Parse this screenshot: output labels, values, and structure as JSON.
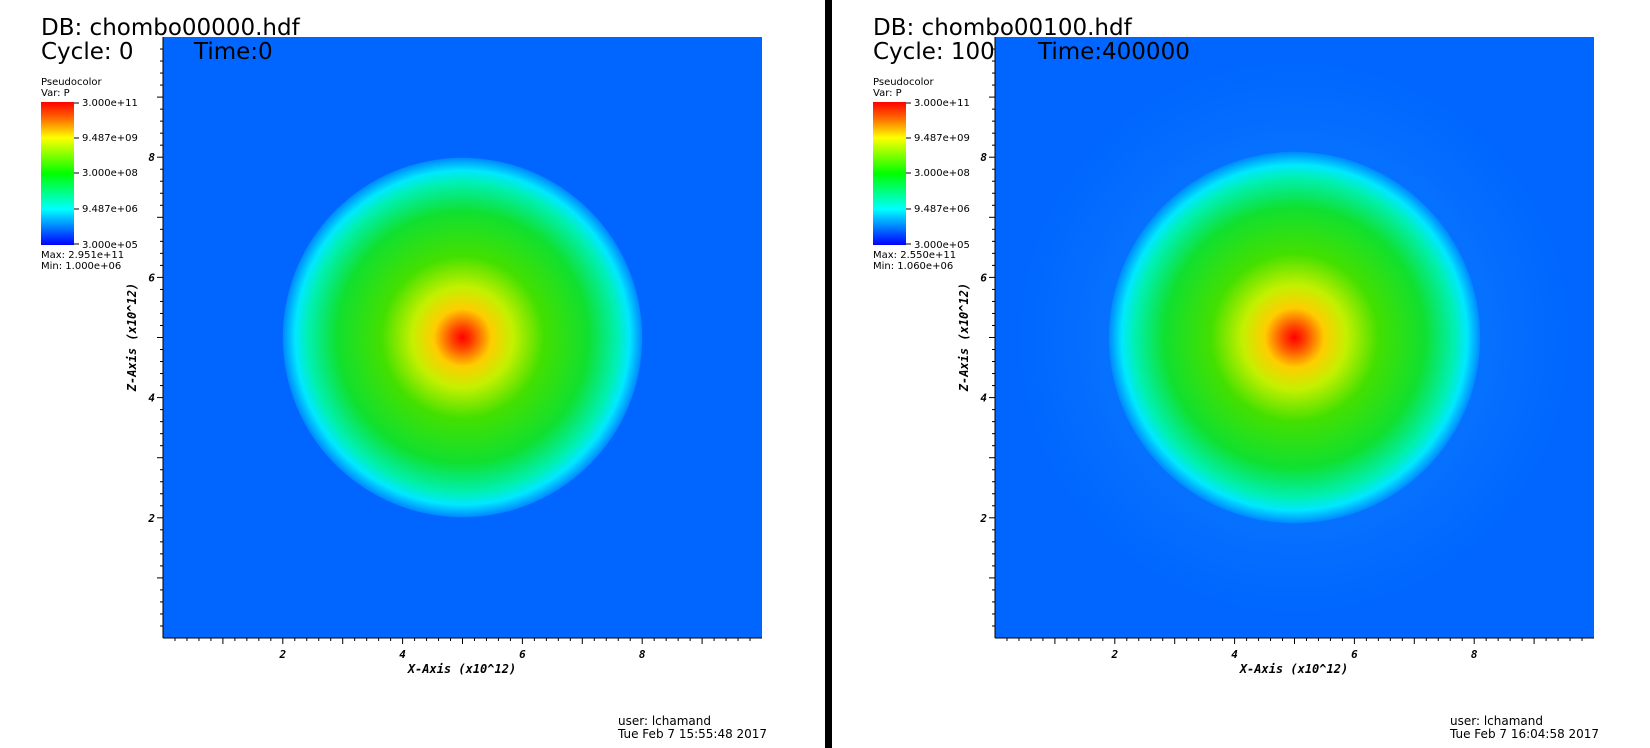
{
  "chart_data": [
    {
      "type": "heatmap",
      "db_label": "DB: chombo00000.hdf",
      "cycle_label": "Cycle: 0",
      "time_label": "Time:0",
      "legend": {
        "title": "Pseudocolor",
        "var": "Var: P",
        "scale": "log",
        "ticks": [
          "3.000e+11",
          "9.487e+09",
          "3.000e+08",
          "9.487e+06",
          "3.000e+05"
        ],
        "max_label": "Max:  2.951e+11",
        "min_label": "Min:  1.000e+06"
      },
      "xlabel": "X-Axis (x10^12)",
      "ylabel": "Z-Axis (x10^12)",
      "xlim": [
        0,
        10
      ],
      "ylim": [
        0,
        10
      ],
      "x_ticks": [
        "2",
        "4",
        "6",
        "8"
      ],
      "y_ticks": [
        "2",
        "4",
        "6",
        "8"
      ],
      "grid": false,
      "field": {
        "center": [
          5,
          5
        ],
        "radius": 3,
        "peak_value": 295100000000.0,
        "min_value": 1000000.0
      },
      "footer": {
        "user": "user: lchamand",
        "date": "Tue Feb  7 15:55:48 2017"
      }
    },
    {
      "type": "heatmap",
      "db_label": "DB: chombo00100.hdf",
      "cycle_label": "Cycle: 100",
      "time_label": "Time:400000",
      "legend": {
        "title": "Pseudocolor",
        "var": "Var: P",
        "scale": "log",
        "ticks": [
          "3.000e+11",
          "9.487e+09",
          "3.000e+08",
          "9.487e+06",
          "3.000e+05"
        ],
        "max_label": "Max:  2.550e+11",
        "min_label": "Min:  1.060e+06"
      },
      "xlabel": "X-Axis (x10^12)",
      "ylabel": "Z-Axis (x10^12)",
      "xlim": [
        0,
        10
      ],
      "ylim": [
        0,
        10
      ],
      "x_ticks": [
        "2",
        "4",
        "6",
        "8"
      ],
      "y_ticks": [
        "2",
        "4",
        "6",
        "8"
      ],
      "grid": false,
      "field": {
        "center": [
          5,
          5
        ],
        "radius": 3.1,
        "peak_value": 255000000000.0,
        "min_value": 1060000.0
      },
      "footer": {
        "user": "user: lchamand",
        "date": "Tue Feb  7 16:04:58 2017"
      }
    }
  ]
}
